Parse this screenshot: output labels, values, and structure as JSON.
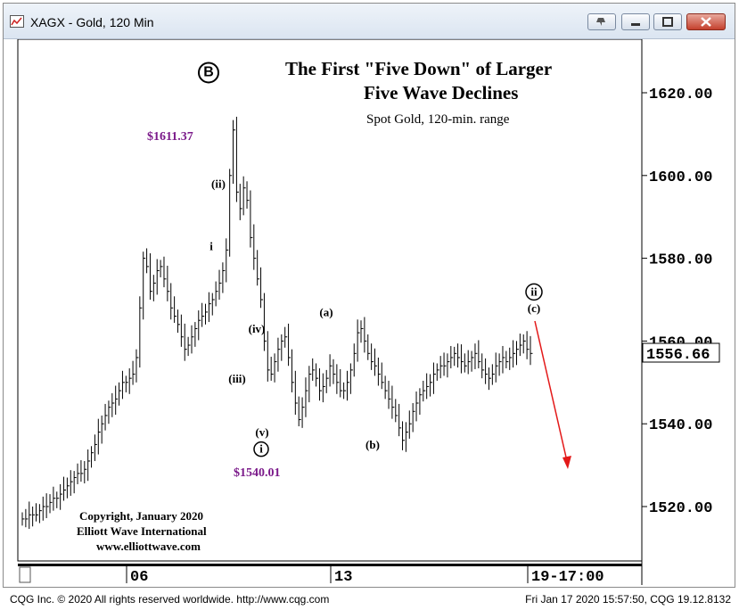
{
  "window": {
    "title": "XAGX - Gold, 120 Min",
    "icon": "chart-app-icon",
    "buttons": [
      "pin-icon",
      "minimize-icon",
      "maximize-icon",
      "close-icon"
    ]
  },
  "chart_data": {
    "type": "bar",
    "instrument": "Spot Gold",
    "title_line1": "The First \"Five Down\" of Larger",
    "title_line2": "Five Wave Declines",
    "subtitle": "Spot Gold, 120-min. range",
    "ylim": [
      1503,
      1630
    ],
    "y_ticks": [
      "1620.00",
      "1600.00",
      "1580.00",
      "1560.00",
      "1540.00",
      "1520.00"
    ],
    "last_price": "1556.66",
    "x_labels": [
      "06",
      "13",
      "19-17:00"
    ],
    "grid": false,
    "price_callouts": [
      "$1611.37",
      "$1540.01"
    ],
    "wave_labels": [
      {
        "label": "B",
        "circled": true,
        "price": 1624
      },
      {
        "label": "(ii)",
        "price": 1597
      },
      {
        "label": "i",
        "circled": false,
        "price": 1582
      },
      {
        "label": "(iv)",
        "price": 1562
      },
      {
        "label": "(iii)",
        "price": 1550
      },
      {
        "label": "(v)",
        "price": 1537
      },
      {
        "label": "i",
        "circled": true,
        "price": 1533
      },
      {
        "label": "(a)",
        "price": 1566
      },
      {
        "label": "(b)",
        "price": 1534
      },
      {
        "label": "ii",
        "circled": true,
        "price": 1571
      },
      {
        "label": "(c)",
        "price": 1567
      }
    ],
    "projection": {
      "from": 1567,
      "to": 1530,
      "color": "#e31919"
    },
    "closes": [
      1517,
      1517,
      1518,
      1518,
      1518,
      1519,
      1520,
      1520,
      1521,
      1522,
      1522,
      1523,
      1524,
      1525,
      1526,
      1527,
      1528,
      1528,
      1529,
      1531,
      1533,
      1535,
      1538,
      1540,
      1542,
      1544,
      1545,
      1546,
      1548,
      1550,
      1550,
      1551,
      1552,
      1556,
      1568,
      1580,
      1578,
      1572,
      1574,
      1577,
      1578,
      1575,
      1572,
      1568,
      1566,
      1564,
      1561,
      1558,
      1559,
      1561,
      1563,
      1565,
      1566,
      1567,
      1569,
      1570,
      1572,
      1574,
      1577,
      1582,
      1600,
      1611,
      1596,
      1592,
      1597,
      1594,
      1585,
      1580,
      1575,
      1570,
      1560,
      1553,
      1552,
      1555,
      1558,
      1560,
      1561,
      1556,
      1550,
      1545,
      1541,
      1544,
      1548,
      1552,
      1553,
      1551,
      1548,
      1549,
      1551,
      1554,
      1552,
      1550,
      1548,
      1548,
      1550,
      1553,
      1557,
      1562,
      1563,
      1560,
      1557,
      1555,
      1554,
      1552,
      1550,
      1548,
      1546,
      1544,
      1542,
      1539,
      1536,
      1538,
      1540,
      1543,
      1545,
      1547,
      1548,
      1549,
      1550,
      1552,
      1553,
      1554,
      1554,
      1555,
      1556,
      1557,
      1556,
      1555,
      1554,
      1555,
      1556,
      1557,
      1555,
      1553,
      1552,
      1551,
      1552,
      1554,
      1555,
      1556,
      1555,
      1556,
      1557,
      1558,
      1559,
      1560,
      1558,
      1557
    ]
  },
  "annotations": {
    "price_high": "$1611.37",
    "price_low": "$1540.01",
    "copyright": [
      "Copyright, January 2020",
      "Elliott Wave International",
      "www.elliottwave.com"
    ]
  },
  "footer": {
    "left": "CQG Inc. © 2020 All rights reserved worldwide. http://www.cqg.com",
    "right": "Fri Jan 17 2020 15:57:50, CQG 19.12.8132"
  }
}
